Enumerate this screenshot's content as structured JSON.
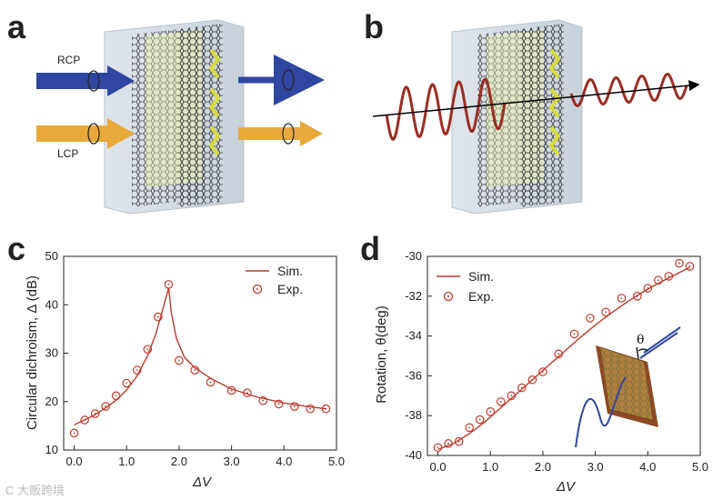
{
  "panels": {
    "a": {
      "letter": "a",
      "beam_top_label": "RCP",
      "beam_bottom_label": "LCP"
    },
    "b": {
      "letter": "b"
    },
    "c": {
      "letter": "c"
    },
    "d": {
      "letter": "d",
      "inset_angle_label": "θ"
    }
  },
  "colors": {
    "sim": "#c0392b",
    "exp": "#c0392b",
    "rcp": "#2f47a0",
    "lcp": "#e8a83a",
    "wave": "#9b2d24"
  },
  "watermark": "C 大贩跨境",
  "chart_data": [
    {
      "id": "c",
      "type": "line",
      "xlabel": "ΔV",
      "ylabel": "Circular dichroism, Δ (dB)",
      "xlim": [
        -0.2,
        5.0
      ],
      "ylim": [
        10,
        50
      ],
      "xticks": [
        0.0,
        1.0,
        2.0,
        3.0,
        4.0,
        5.0
      ],
      "xtick_labels": [
        "0.0",
        "1.0",
        "2.0",
        "3.0",
        "4.0",
        "5.0"
      ],
      "yticks": [
        10,
        20,
        30,
        40,
        50
      ],
      "ytick_labels": [
        "10",
        "20",
        "30",
        "40",
        "50"
      ],
      "legend": [
        {
          "name": "Sim.",
          "style": "line"
        },
        {
          "name": "Exp.",
          "style": "marker"
        }
      ],
      "series": [
        {
          "name": "Sim.",
          "style": "line",
          "x": [
            0.0,
            0.2,
            0.4,
            0.6,
            0.8,
            1.0,
            1.2,
            1.4,
            1.55,
            1.65,
            1.75,
            1.8,
            1.85,
            1.95,
            2.1,
            2.3,
            2.6,
            3.0,
            3.5,
            4.0,
            4.5,
            4.8
          ],
          "y": [
            15.2,
            16.2,
            17.3,
            18.7,
            20.3,
            22.4,
            25.3,
            29.5,
            33.8,
            37.5,
            41.5,
            43.5,
            38.5,
            33.0,
            29.2,
            27.0,
            24.8,
            22.6,
            20.9,
            19.7,
            18.9,
            18.5
          ]
        },
        {
          "name": "Exp.",
          "style": "marker",
          "x": [
            0.0,
            0.2,
            0.4,
            0.6,
            0.8,
            1.0,
            1.2,
            1.4,
            1.6,
            1.8,
            2.0,
            2.3,
            2.6,
            3.0,
            3.3,
            3.6,
            3.9,
            4.2,
            4.5,
            4.8
          ],
          "y": [
            13.5,
            16.2,
            17.5,
            19.0,
            21.2,
            23.8,
            26.5,
            30.8,
            37.5,
            44.2,
            28.5,
            26.5,
            24.0,
            22.3,
            21.8,
            20.2,
            19.5,
            19.0,
            18.5,
            18.5
          ]
        }
      ]
    },
    {
      "id": "d",
      "type": "line",
      "xlabel": "ΔV",
      "ylabel": "Rotation, θ(deg)",
      "xlim": [
        -0.2,
        5.0
      ],
      "ylim": [
        -40,
        -30
      ],
      "xticks": [
        0.0,
        1.0,
        2.0,
        3.0,
        4.0,
        5.0
      ],
      "xtick_labels": [
        "0.0",
        "1.0",
        "2.0",
        "3.0",
        "4.0",
        "5.0"
      ],
      "yticks": [
        -40,
        -38,
        -36,
        -34,
        -32,
        -30
      ],
      "ytick_labels": [
        "-40",
        "-38",
        "-36",
        "-34",
        "-32",
        "-30"
      ],
      "legend": [
        {
          "name": "Sim.",
          "style": "line"
        },
        {
          "name": "Exp.",
          "style": "marker"
        }
      ],
      "series": [
        {
          "name": "Sim.",
          "style": "line",
          "x": [
            0.0,
            0.3,
            0.6,
            0.9,
            1.2,
            1.5,
            1.8,
            2.1,
            2.4,
            2.7,
            3.0,
            3.3,
            3.6,
            3.9,
            4.2,
            4.5,
            4.8
          ],
          "y": [
            -39.7,
            -39.4,
            -38.9,
            -38.3,
            -37.6,
            -36.9,
            -36.2,
            -35.5,
            -34.8,
            -34.1,
            -33.45,
            -32.85,
            -32.3,
            -31.8,
            -31.35,
            -30.95,
            -30.55
          ]
        },
        {
          "name": "Exp.",
          "style": "marker",
          "x": [
            0.0,
            0.2,
            0.4,
            0.6,
            0.8,
            1.0,
            1.2,
            1.4,
            1.6,
            1.8,
            2.0,
            2.3,
            2.6,
            2.9,
            3.2,
            3.5,
            3.8,
            4.0,
            4.2,
            4.4,
            4.6,
            4.8
          ],
          "y": [
            -39.6,
            -39.4,
            -39.3,
            -38.6,
            -38.2,
            -37.8,
            -37.3,
            -37.0,
            -36.6,
            -36.2,
            -35.8,
            -34.9,
            -33.9,
            -33.1,
            -32.8,
            -32.1,
            -32.0,
            -31.6,
            -31.2,
            -31.0,
            -30.35,
            -30.5
          ]
        }
      ]
    }
  ]
}
